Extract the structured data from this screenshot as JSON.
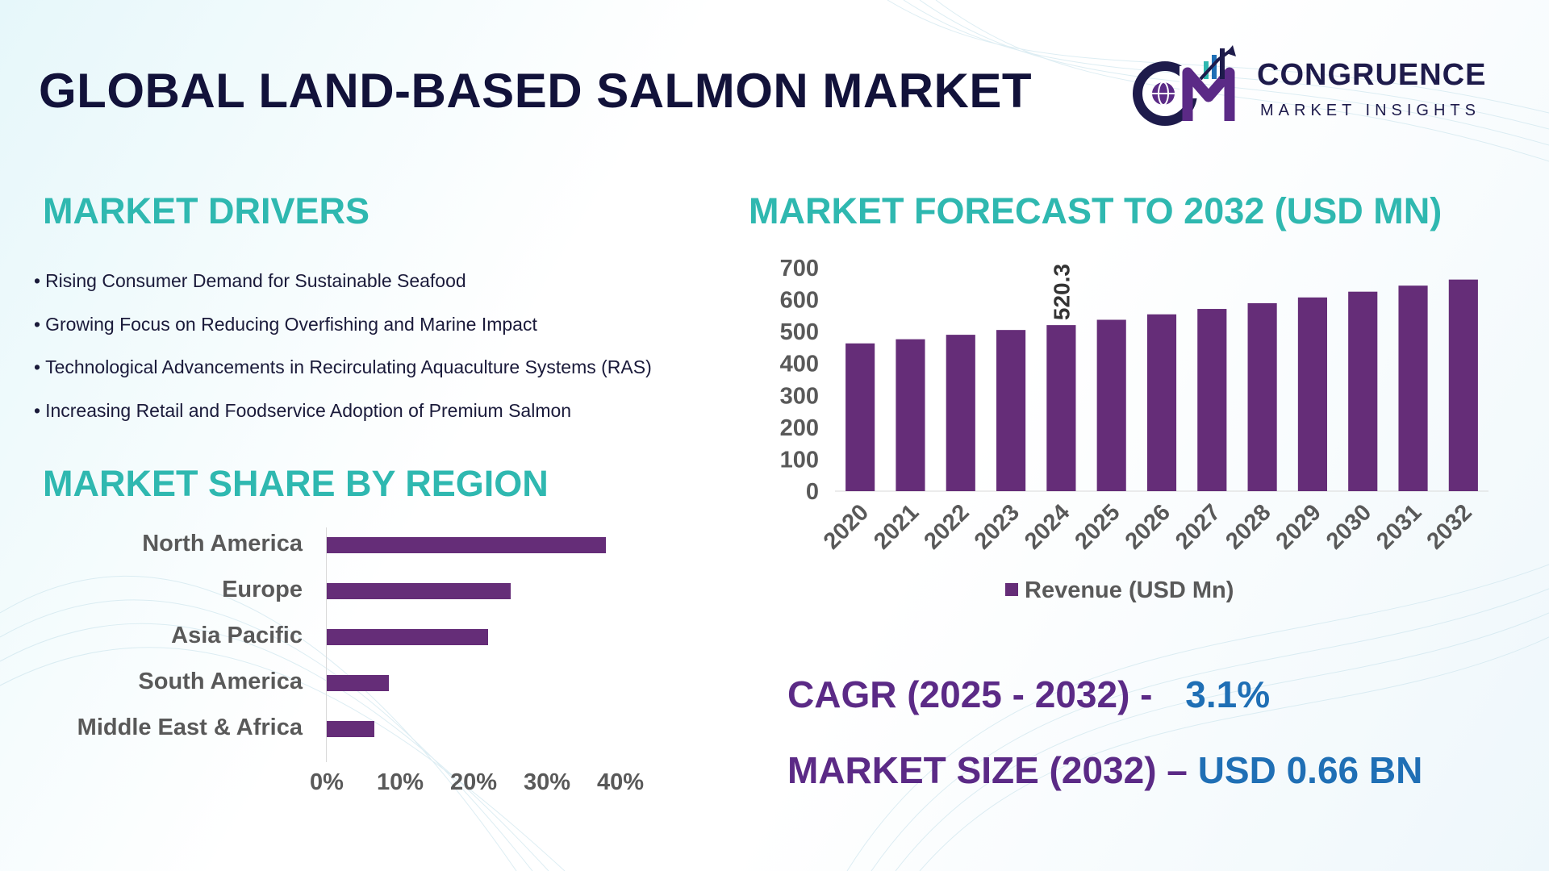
{
  "title": "GLOBAL LAND-BASED SALMON MARKET",
  "logo": {
    "mark_letters": "CM",
    "name": "CONGRUENCE",
    "tagline": "MARKET INSIGHTS"
  },
  "drivers": {
    "heading": "MARKET DRIVERS",
    "bullet": "•",
    "items": [
      "Rising Consumer Demand for Sustainable Seafood",
      "Growing Focus on Reducing Overfishing and Marine Impact",
      "Technological Advancements in Recirculating Aquaculture Systems (RAS)",
      "Increasing Retail and Foodservice Adoption of Premium Salmon"
    ]
  },
  "region": {
    "heading": "MARKET SHARE BY REGION"
  },
  "forecast": {
    "heading": "MARKET FORECAST TO 2032 (USD MN)",
    "legend": "Revenue (USD Mn)"
  },
  "stats": {
    "cagr_label": "CAGR (2025 - 2032) -",
    "cagr_value": "3.1%",
    "size_label": "MARKET SIZE (2032) –",
    "size_value": "USD 0.66 BN"
  },
  "colors": {
    "bar": "#652d78",
    "teal_heading": "#2fb8b0",
    "title": "#12123a",
    "stat_label": "#5b2a86",
    "stat_value": "#1f6fb5",
    "axis_text": "#595959"
  },
  "chart_data": [
    {
      "type": "bar",
      "orientation": "vertical",
      "title": "MARKET FORECAST TO 2032 (USD MN)",
      "categories": [
        "2020",
        "2021",
        "2022",
        "2023",
        "2024",
        "2025",
        "2026",
        "2027",
        "2028",
        "2029",
        "2030",
        "2031",
        "2032"
      ],
      "series": [
        {
          "name": "Revenue (USD Mn)",
          "values": [
            463,
            476,
            490,
            505,
            520.3,
            537,
            554,
            571,
            589,
            607,
            625,
            644,
            663
          ]
        }
      ],
      "data_labels": [
        {
          "category": "2024",
          "label": "520.3"
        }
      ],
      "yticks": [
        "0",
        "100",
        "200",
        "300",
        "400",
        "500",
        "600",
        "700"
      ],
      "ylim": [
        0,
        700
      ],
      "legend": "bottom-center",
      "grid": false
    },
    {
      "type": "bar",
      "orientation": "horizontal",
      "title": "MARKET SHARE BY REGION",
      "categories": [
        "North America",
        "Europe",
        "Asia Pacific",
        "South America",
        "Middle East & Africa"
      ],
      "values": [
        38,
        25,
        22,
        8.5,
        6.5
      ],
      "xticks": [
        "0%",
        "10%",
        "20%",
        "30%",
        "40%"
      ],
      "xlim": [
        0,
        40
      ],
      "grid": false
    }
  ]
}
